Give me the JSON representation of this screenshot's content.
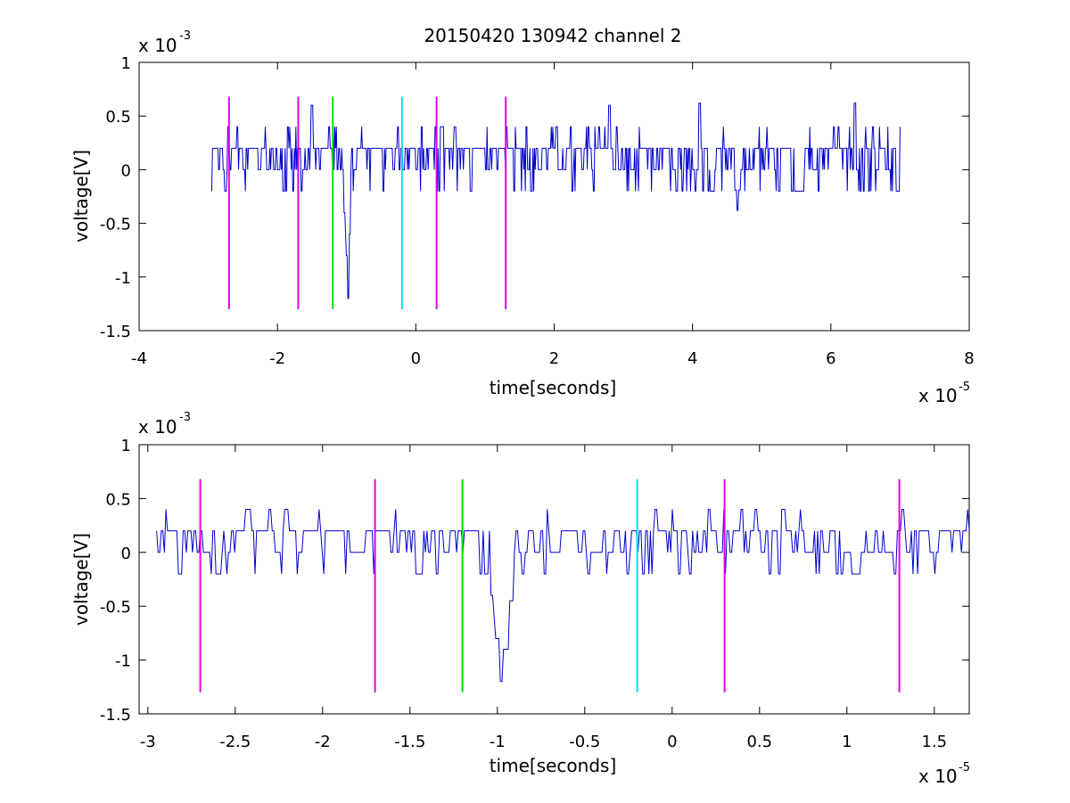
{
  "title": "20150420 130942 channel 2",
  "colors": {
    "signal": "#0000cc",
    "marker_magenta": "#e600e6",
    "marker_green": "#00e600",
    "marker_cyan": "#00e6e6",
    "axis": "#000000"
  },
  "chart_data": [
    {
      "type": "line",
      "title": "20150420 130942 channel 2",
      "xlabel": "time[seconds]",
      "ylabel": "voltage[V]",
      "x_multiplier_label": "x 10",
      "x_multiplier_exp": "-5",
      "y_multiplier_label": "x 10",
      "y_multiplier_exp": "-3",
      "xlim": [
        -4,
        8
      ],
      "ylim": [
        -1.5,
        1
      ],
      "xticks": [
        -4,
        -2,
        0,
        2,
        4,
        6,
        8
      ],
      "xtick_labels": [
        "-4",
        "-2",
        "0",
        "2",
        "4",
        "6",
        "8"
      ],
      "yticks": [
        -1.5,
        -1,
        -0.5,
        0,
        0.5,
        1
      ],
      "ytick_labels": [
        "-1.5",
        "-1",
        "-0.5",
        "0",
        "0.5",
        "1"
      ],
      "grid": false,
      "legend": "none",
      "signal": {
        "x_range": [
          -2.95,
          7.0
        ],
        "baseline_mean": 0.08,
        "spikes": [
          [
            -0.98,
            -1.2
          ],
          [
            -1.0,
            -0.8
          ],
          [
            4.65,
            -0.38
          ],
          [
            2.8,
            0.6
          ],
          [
            4.1,
            0.62
          ],
          [
            6.35,
            0.62
          ],
          [
            -1.5,
            0.6
          ]
        ]
      },
      "markers": [
        {
          "x": -2.7,
          "color": "magenta",
          "y_range": [
            -1.3,
            0.68
          ]
        },
        {
          "x": -1.7,
          "color": "magenta",
          "y_range": [
            -1.3,
            0.68
          ]
        },
        {
          "x": -1.2,
          "color": "green",
          "y_range": [
            -1.3,
            0.68
          ]
        },
        {
          "x": -0.2,
          "color": "cyan",
          "y_range": [
            -1.3,
            0.68
          ]
        },
        {
          "x": 0.3,
          "color": "magenta",
          "y_range": [
            -1.3,
            0.68
          ]
        },
        {
          "x": 1.3,
          "color": "magenta",
          "y_range": [
            -1.3,
            0.68
          ]
        }
      ]
    },
    {
      "type": "line",
      "title": "",
      "xlabel": "time[seconds]",
      "ylabel": "voltage[V]",
      "x_multiplier_label": "x 10",
      "x_multiplier_exp": "-5",
      "y_multiplier_label": "x 10",
      "y_multiplier_exp": "-3",
      "xlim": [
        -3.05,
        1.7
      ],
      "ylim": [
        -1.5,
        1
      ],
      "xticks": [
        -3,
        -2.5,
        -2,
        -1.5,
        -1,
        -0.5,
        0,
        0.5,
        1,
        1.5
      ],
      "xtick_labels": [
        "-3",
        "-2.5",
        "-2",
        "-1.5",
        "-1",
        "-0.5",
        "0",
        "0.5",
        "1",
        "1.5"
      ],
      "yticks": [
        -1.5,
        -1,
        -0.5,
        0,
        0.5,
        1
      ],
      "ytick_labels": [
        "-1.5",
        "-1",
        "-0.5",
        "0",
        "0.5",
        "1"
      ],
      "grid": false,
      "legend": "none",
      "signal": {
        "x_range": [
          -2.95,
          1.7
        ],
        "baseline_mean": 0.08,
        "spikes": [
          [
            -0.98,
            -1.2
          ],
          [
            -1.0,
            -0.8
          ],
          [
            -0.95,
            -0.9
          ]
        ]
      },
      "markers": [
        {
          "x": -2.7,
          "color": "magenta",
          "y_range": [
            -1.3,
            0.68
          ]
        },
        {
          "x": -1.7,
          "color": "magenta",
          "y_range": [
            -1.3,
            0.68
          ]
        },
        {
          "x": -1.2,
          "color": "green",
          "y_range": [
            -1.3,
            0.68
          ]
        },
        {
          "x": -0.2,
          "color": "cyan",
          "y_range": [
            -1.3,
            0.68
          ]
        },
        {
          "x": 0.3,
          "color": "magenta",
          "y_range": [
            -1.3,
            0.68
          ]
        },
        {
          "x": 1.3,
          "color": "magenta",
          "y_range": [
            -1.3,
            0.68
          ]
        }
      ]
    }
  ]
}
